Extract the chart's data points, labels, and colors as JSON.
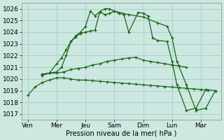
{
  "title": "Pression niveau de la mer( hPa )",
  "background_color": "#cce8e0",
  "grid_color": "#aacccc",
  "line_color": "#1a6618",
  "xlabels": [
    "Ven",
    "Mer",
    "Jeu",
    "Sam",
    "Dim",
    "Lun",
    "Mar"
  ],
  "xtick_positions": [
    0,
    1,
    2,
    3,
    4,
    5,
    6
  ],
  "ylim_min": 1016.5,
  "ylim_max": 1026.5,
  "yticks": [
    1017,
    1018,
    1019,
    1020,
    1021,
    1022,
    1023,
    1024,
    1025,
    1026
  ],
  "line1_x": [
    0.0,
    0.25,
    0.5,
    0.75,
    1.0,
    1.25,
    1.5,
    1.75,
    2.0,
    2.25,
    2.5,
    2.75,
    3.0,
    3.25,
    3.5,
    3.75,
    4.0,
    4.25,
    4.5,
    4.75,
    5.0,
    5.25,
    5.5,
    5.75,
    6.0,
    6.25
  ],
  "line1_y": [
    1018.6,
    1019.3,
    1019.7,
    1019.9,
    1020.1,
    1020.1,
    1020.0,
    1019.9,
    1019.9,
    1019.85,
    1019.8,
    1019.75,
    1019.7,
    1019.65,
    1019.6,
    1019.55,
    1019.5,
    1019.45,
    1019.4,
    1019.35,
    1019.3,
    1019.25,
    1019.2,
    1019.15,
    1019.1,
    1019.05
  ],
  "line2_x": [
    0.5,
    0.75,
    1.0,
    1.25,
    1.5,
    1.75,
    2.0,
    2.25,
    2.5,
    2.75,
    3.0,
    3.25,
    3.5,
    3.75,
    4.0,
    4.25,
    4.5,
    4.75,
    5.0,
    5.25,
    5.5
  ],
  "line2_y": [
    1020.4,
    1020.5,
    1020.5,
    1020.6,
    1020.8,
    1020.9,
    1021.0,
    1021.2,
    1021.3,
    1021.5,
    1021.6,
    1021.7,
    1021.8,
    1021.85,
    1021.6,
    1021.5,
    1021.4,
    1021.3,
    1021.2,
    1021.1,
    1021.0
  ],
  "line3_x": [
    0.5,
    0.75,
    1.0,
    1.17,
    1.33,
    1.5,
    1.67,
    1.83,
    2.0,
    2.17,
    2.33,
    2.5,
    2.67,
    2.83,
    3.0,
    3.17,
    3.33,
    3.5,
    3.83,
    4.0,
    4.17,
    4.33,
    4.5,
    4.83,
    5.0,
    5.17,
    5.5,
    5.83,
    6.17,
    6.5
  ],
  "line3_y": [
    1020.3,
    1020.5,
    1021.3,
    1021.8,
    1022.5,
    1023.2,
    1023.6,
    1023.9,
    1024.0,
    1024.1,
    1024.15,
    1025.75,
    1025.5,
    1025.6,
    1025.8,
    1025.6,
    1025.5,
    1024.0,
    1025.7,
    1025.6,
    1025.4,
    1023.5,
    1023.3,
    1023.2,
    1021.5,
    1019.5,
    1017.3,
    1017.5,
    1019.1,
    1019.0
  ],
  "line4_x": [
    0.5,
    0.75,
    1.0,
    1.17,
    1.33,
    1.5,
    1.67,
    1.83,
    2.0,
    2.17,
    2.33,
    2.5,
    2.67,
    2.83,
    3.0,
    3.5,
    4.0,
    4.5,
    4.83,
    5.0,
    5.17,
    5.5,
    5.83,
    6.17,
    6.5
  ],
  "line4_y": [
    1020.4,
    1020.5,
    1020.6,
    1021.0,
    1022.0,
    1023.2,
    1023.7,
    1024.0,
    1024.5,
    1025.8,
    1025.4,
    1025.75,
    1026.0,
    1026.0,
    1025.8,
    1025.5,
    1025.3,
    1024.8,
    1024.5,
    1023.5,
    1021.5,
    1019.5,
    1017.3,
    1017.5,
    1019.0
  ]
}
